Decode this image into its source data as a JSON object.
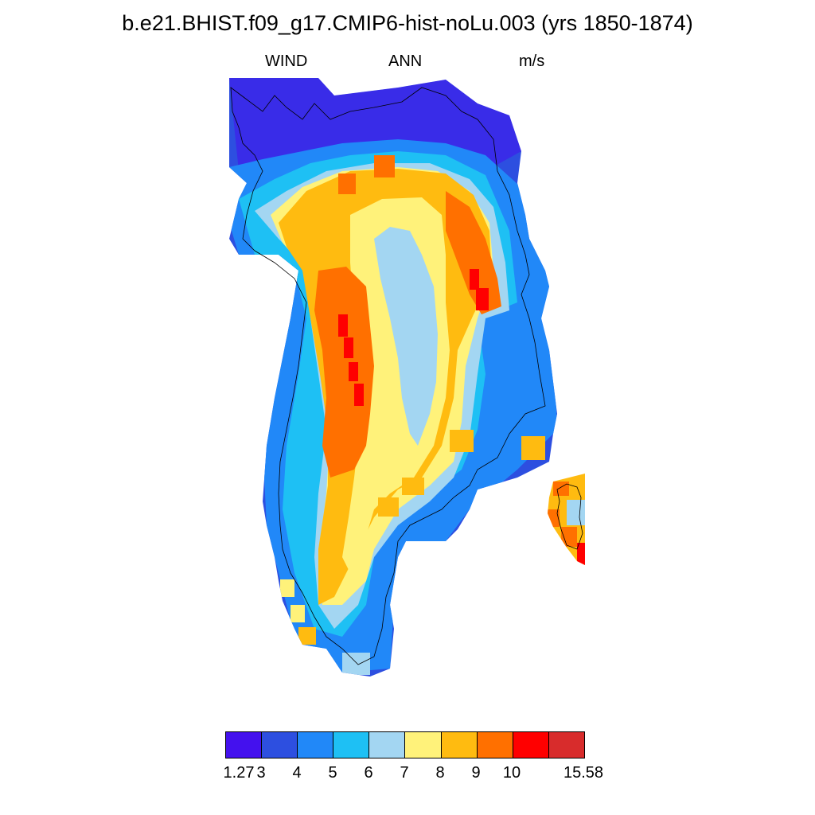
{
  "header": {
    "title": "b.e21.BHIST.f09_g17.CMIP6-hist-noLu.003 (yrs 1850-1874)",
    "left_label": "WIND",
    "center_label": "ANN",
    "right_label": "m/s"
  },
  "legend": {
    "colors": [
      "#4411ee",
      "#2d4fe0",
      "#2188f8",
      "#1ec0f4",
      "#a3d6f2",
      "#fff27a",
      "#ffbb10",
      "#ff7000",
      "#ff0000",
      "#d82c2c"
    ],
    "labels": [
      "1.27",
      "3",
      "4",
      "5",
      "6",
      "7",
      "8",
      "9",
      "10",
      "15.58"
    ]
  },
  "map": {
    "region": "Greenland",
    "variable": "WIND",
    "units": "m/s"
  }
}
